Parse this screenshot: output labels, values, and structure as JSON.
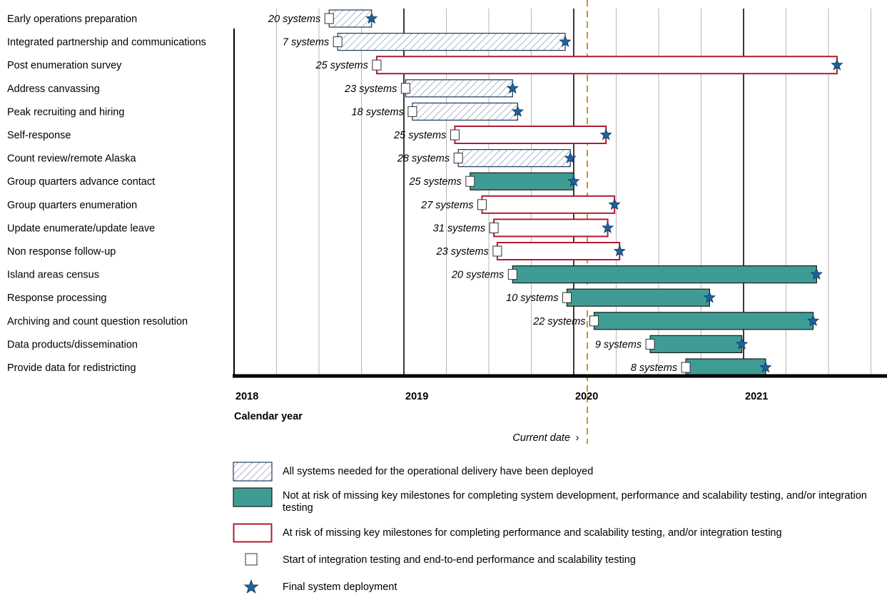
{
  "colors": {
    "completed_fill": "#ffffff",
    "completed_hatch": "#5b6f9a",
    "completed_border": "#1f3a5f",
    "not_at_risk_fill": "#3f9c94",
    "not_at_risk_border": "#1c1c1c",
    "at_risk_border": "#b01c33",
    "star": "#1a63a0",
    "current_date_line": "#c7951e",
    "gridline": "#b7b7b7",
    "year_line": "#3a3a3a"
  },
  "chart_data": {
    "type": "gantt",
    "xlabel": "Calendar year",
    "x_ticks": [
      "2018",
      "2019",
      "2020",
      "2021"
    ],
    "xlim": [
      2018.0,
      2021.83
    ],
    "grid": "quarterly vertical lines; darker lines at year boundaries",
    "current_date": 2020.08,
    "current_date_label": "Current date",
    "rows": [
      {
        "label": "Early operations preparation",
        "systems": "20 systems",
        "start": 2018.56,
        "end": 2018.81,
        "status": "completed"
      },
      {
        "label": "Integrated partnership and communications",
        "systems": "7 systems",
        "start": 2018.61,
        "end": 2019.95,
        "status": "completed"
      },
      {
        "label": "Post enumeration survey",
        "systems": "25 systems",
        "start": 2018.84,
        "end": 2021.55,
        "status": "at_risk"
      },
      {
        "label": "Address canvassing",
        "systems": "23 systems",
        "start": 2019.01,
        "end": 2019.64,
        "status": "completed"
      },
      {
        "label": "Peak recruiting and hiring",
        "systems": "18 systems",
        "start": 2019.05,
        "end": 2019.67,
        "status": "completed"
      },
      {
        "label": "Self-response",
        "systems": "25 systems",
        "start": 2019.3,
        "end": 2020.19,
        "status": "at_risk"
      },
      {
        "label": "Count review/remote Alaska",
        "systems": "28 systems",
        "start": 2019.32,
        "end": 2019.98,
        "status": "completed"
      },
      {
        "label": "Group quarters advance contact",
        "systems": "25 systems",
        "start": 2019.39,
        "end": 2020.0,
        "status": "not_at_risk"
      },
      {
        "label": "Group quarters enumeration",
        "systems": "27 systems",
        "start": 2019.46,
        "end": 2020.24,
        "status": "at_risk"
      },
      {
        "label": "Update enumerate/update leave",
        "systems": "31 systems",
        "start": 2019.53,
        "end": 2020.2,
        "status": "at_risk"
      },
      {
        "label": "Non response follow-up",
        "systems": "23 systems",
        "start": 2019.55,
        "end": 2020.27,
        "status": "at_risk"
      },
      {
        "label": "Island areas census",
        "systems": "20 systems",
        "start": 2019.64,
        "end": 2021.43,
        "status": "not_at_risk"
      },
      {
        "label": "Response processing",
        "systems": "10 systems",
        "start": 2019.96,
        "end": 2020.8,
        "status": "not_at_risk"
      },
      {
        "label": "Archiving and count question resolution",
        "systems": "22 systems",
        "start": 2020.12,
        "end": 2021.41,
        "status": "not_at_risk"
      },
      {
        "label": "Data products/dissemination",
        "systems": "9 systems",
        "start": 2020.45,
        "end": 2020.99,
        "status": "not_at_risk"
      },
      {
        "label": "Provide data for redistricting",
        "systems": "8 systems",
        "start": 2020.66,
        "end": 2021.13,
        "status": "not_at_risk"
      }
    ]
  },
  "legend": {
    "completed": "All systems needed for the operational delivery have been deployed",
    "not_at_risk": "Not at risk of missing key milestones for completing system development, performance and scalability testing, and/or integration testing",
    "at_risk": "At risk of missing key milestones for completing performance and scalability testing, and/or integration testing",
    "start_marker": "Start of integration testing and end-to-end performance and scalability testing",
    "star_marker": "Final system deployment"
  }
}
